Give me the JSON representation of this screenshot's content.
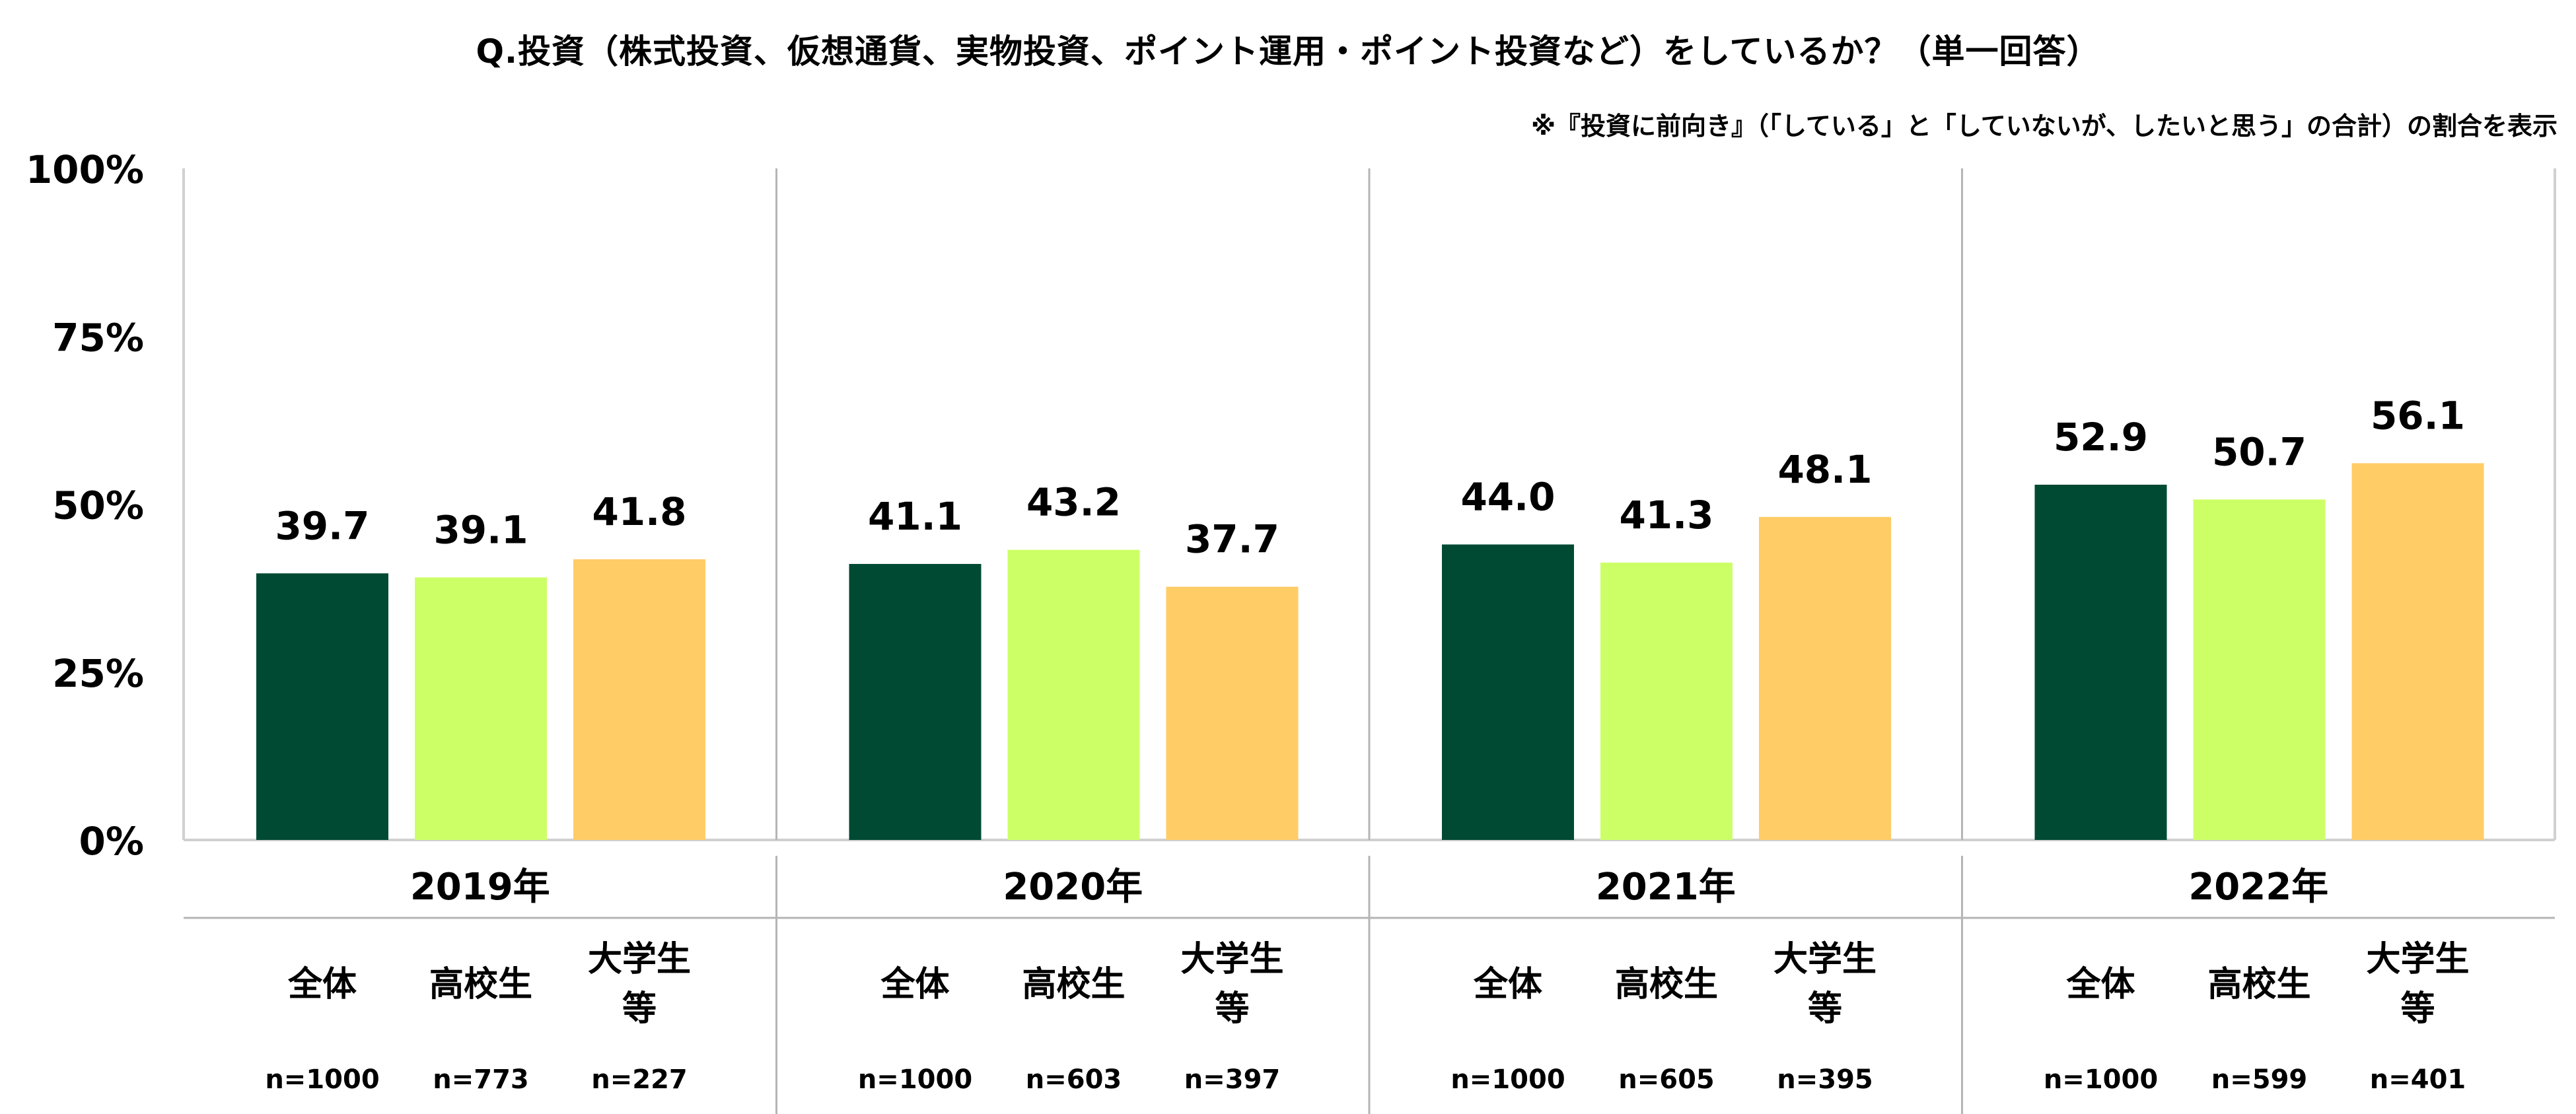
{
  "title": "Q.投資（株式投資、仮想通貨、実物投資、ポイント運用・ポイント投資など）をしているか？（単一回答）",
  "note": "※『投資に前向き』（「している」と「していないが、したいと思う」の合計）の割合を表示",
  "colors": {
    "all": "#004a33",
    "high_school": "#ccff66",
    "university": "#ffcc66"
  },
  "chart_data": {
    "type": "bar",
    "title": "Q.投資（株式投資、仮想通貨、実物投資、ポイント運用・ポイント投資など）をしているか？（単一回答）",
    "y_ticks": [
      "0%",
      "25%",
      "50%",
      "75%",
      "100%"
    ],
    "ylim": [
      0,
      100
    ],
    "grid": false,
    "groups": [
      {
        "year": "2019年",
        "bars": [
          {
            "label": "全体",
            "n": "n=1000",
            "value": 39.7,
            "value_label": "39.7"
          },
          {
            "label": "高校生",
            "n": "n=773",
            "value": 39.1,
            "value_label": "39.1"
          },
          {
            "label": "大学生等",
            "n": "n=227",
            "value": 41.8,
            "value_label": "41.8"
          }
        ]
      },
      {
        "year": "2020年",
        "bars": [
          {
            "label": "全体",
            "n": "n=1000",
            "value": 41.1,
            "value_label": "41.1"
          },
          {
            "label": "高校生",
            "n": "n=603",
            "value": 43.2,
            "value_label": "43.2"
          },
          {
            "label": "大学生等",
            "n": "n=397",
            "value": 37.7,
            "value_label": "37.7"
          }
        ]
      },
      {
        "year": "2021年",
        "bars": [
          {
            "label": "全体",
            "n": "n=1000",
            "value": 44.0,
            "value_label": "44.0"
          },
          {
            "label": "高校生",
            "n": "n=605",
            "value": 41.3,
            "value_label": "41.3"
          },
          {
            "label": "大学生等",
            "n": "n=395",
            "value": 48.1,
            "value_label": "48.1"
          }
        ]
      },
      {
        "year": "2022年",
        "bars": [
          {
            "label": "全体",
            "n": "n=1000",
            "value": 52.9,
            "value_label": "52.9"
          },
          {
            "label": "高校生",
            "n": "n=599",
            "value": 50.7,
            "value_label": "50.7"
          },
          {
            "label": "大学生等",
            "n": "n=401",
            "value": 56.1,
            "value_label": "56.1"
          }
        ]
      }
    ]
  }
}
